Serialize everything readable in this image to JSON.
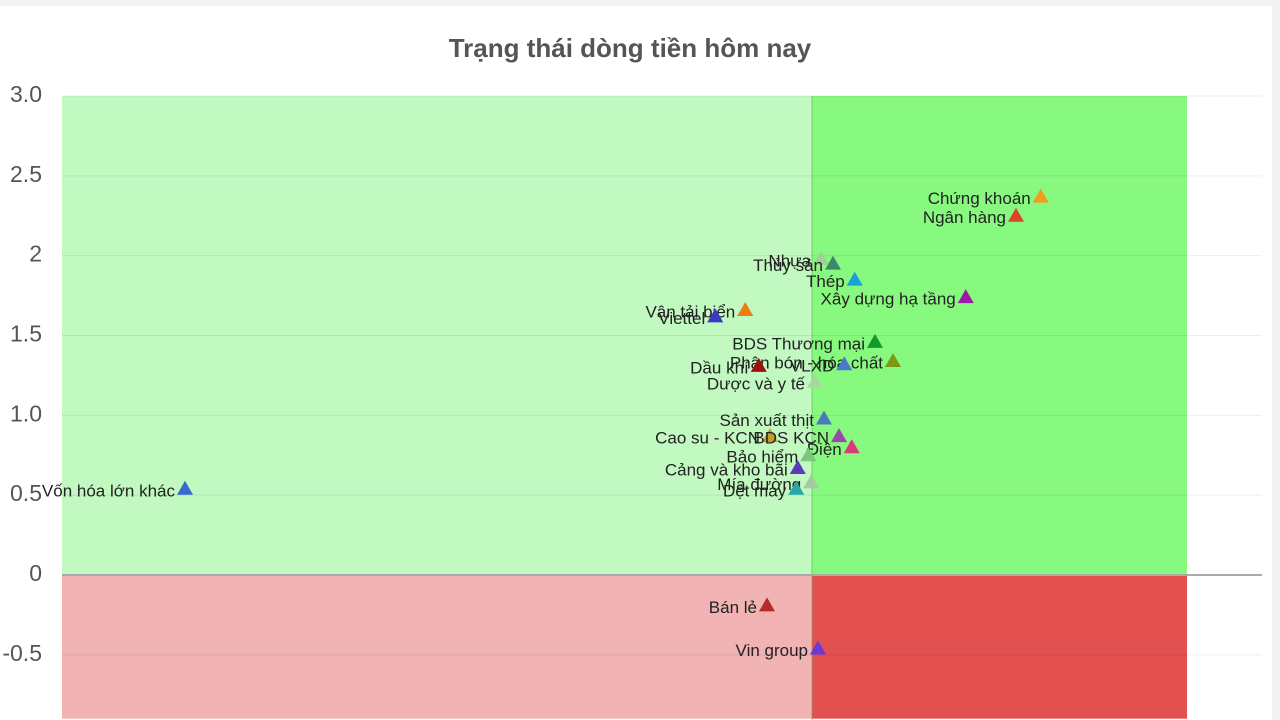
{
  "chart_data": {
    "type": "scatter",
    "title": "Trạng thái dòng tiền hôm nay",
    "xlim": [
      -1,
      0.6
    ],
    "ylim": [
      -0.9,
      3.0
    ],
    "yticks": [
      {
        "value": 3,
        "label": "3.0"
      },
      2.5,
      2.0,
      1.5,
      {
        "value": 1,
        "label": "1.0"
      },
      0.5,
      0,
      -0.5
    ],
    "grid": true,
    "regions": [
      {
        "xlim": [
          -1,
          0
        ],
        "ylim": [
          0,
          3
        ],
        "color": "#c1f9c0"
      },
      {
        "xlim": [
          0,
          0.5
        ],
        "ylim": [
          0,
          3
        ],
        "color": "#88f97f"
      },
      {
        "xlim": [
          -1,
          0
        ],
        "ylim": [
          -0.9,
          0
        ],
        "color": "#f1b3b3"
      },
      {
        "xlim": [
          0,
          0.5
        ],
        "ylim": [
          -0.9,
          0
        ],
        "color": "#e35050"
      }
    ],
    "points": [
      {
        "label": "Chứng khoán",
        "x": 0.305,
        "y": 2.37,
        "color": "#f59a1e"
      },
      {
        "label": "Ngân hàng",
        "x": 0.272,
        "y": 2.25,
        "color": "#d8432a"
      },
      {
        "label": "Nhựa",
        "x": 0.012,
        "y": 1.98,
        "color": "#9fd09a"
      },
      {
        "label": "Thủy sản",
        "x": 0.028,
        "y": 1.95,
        "color": "#3c8a6a"
      },
      {
        "label": "Thép",
        "x": 0.057,
        "y": 1.85,
        "color": "#1a9fd8"
      },
      {
        "label": "Xây dựng hạ tầng",
        "x": 0.205,
        "y": 1.74,
        "color": "#9b1aa8"
      },
      {
        "label": "Vận tải biển",
        "x": -0.089,
        "y": 1.66,
        "color": "#f07a14"
      },
      {
        "label": "Viettel",
        "x": -0.129,
        "y": 1.62,
        "color": "#3a3ac0"
      },
      {
        "label": "BDS Thương mại",
        "x": 0.084,
        "y": 1.46,
        "color": "#129a2a"
      },
      {
        "label": "Phân bón - hóa chất",
        "x": 0.108,
        "y": 1.34,
        "color": "#7a9a12"
      },
      {
        "label": "VLXD",
        "x": 0.043,
        "y": 1.32,
        "color": "#4a7ac8"
      },
      {
        "label": "Dầu khí",
        "x": -0.071,
        "y": 1.31,
        "color": "#9a1010"
      },
      {
        "label": "Dược và y tế",
        "x": 0.004,
        "y": 1.21,
        "color": "#a8d8a0"
      },
      {
        "label": "Sản xuất thịt",
        "x": 0.016,
        "y": 0.98,
        "color": "#4a7ab8"
      },
      {
        "label": "Cao su - KCN",
        "x": -0.056,
        "y": 0.87,
        "color": "#c89a2a"
      },
      {
        "label": "BDS KCN",
        "x": 0.036,
        "y": 0.87,
        "color": "#9a4aa8"
      },
      {
        "label": "Điện",
        "x": 0.053,
        "y": 0.8,
        "color": "#d83a7a"
      },
      {
        "label": "Bảo hiểm",
        "x": -0.005,
        "y": 0.75,
        "color": "#7ac87a"
      },
      {
        "label": "Cảng và kho bãi",
        "x": -0.019,
        "y": 0.67,
        "color": "#5a3ac0"
      },
      {
        "label": "Mía đường",
        "x": -0.001,
        "y": 0.58,
        "color": "#a8c8a0"
      },
      {
        "label": "Dệt may",
        "x": -0.021,
        "y": 0.54,
        "color": "#2aa8a8"
      },
      {
        "label": "Vốn hóa lớn khác",
        "x": -0.836,
        "y": 0.54,
        "color": "#3a6ad0"
      },
      {
        "label": "Bán lẻ",
        "x": -0.06,
        "y": -0.19,
        "color": "#b82a2a"
      },
      {
        "label": "Vin group",
        "x": 0.008,
        "y": -0.46,
        "color": "#6a3ad8"
      }
    ]
  }
}
